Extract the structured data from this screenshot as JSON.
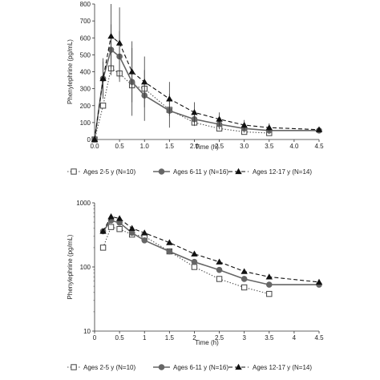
{
  "chart_data": [
    {
      "type": "line",
      "xlabel": "Time (h)",
      "ylabel": "Phenylephrine (pg/mL)",
      "xlim": [
        0,
        4.5
      ],
      "ylim": [
        0,
        800
      ],
      "yscale": "linear",
      "x_ticks": [
        "0.0",
        "0.5",
        "1.0",
        "1.5",
        "2.0",
        "2.5",
        "3.0",
        "3.5",
        "4.0",
        "4.5"
      ],
      "y_ticks": [
        "0",
        "100",
        "200",
        "300",
        "400",
        "500",
        "600",
        "700",
        "800"
      ],
      "grid": false,
      "legend_position": "bottom",
      "series": [
        {
          "name": "Ages 2-5 y",
          "n_label": "(N=10)",
          "marker": "open-square",
          "line_style": "dotted",
          "color": "#555555",
          "x": [
            0,
            0.17,
            0.33,
            0.5,
            0.75,
            1.0,
            1.5,
            2.0,
            2.5,
            3.0,
            3.5
          ],
          "y": [
            0,
            200,
            420,
            390,
            320,
            300,
            175,
            100,
            65,
            45,
            38
          ]
        },
        {
          "name": "Ages 6-11 y",
          "n_label": "(N=16)",
          "marker": "filled-circle",
          "line_style": "solid",
          "color": "#666666",
          "x": [
            0,
            0.17,
            0.33,
            0.5,
            0.75,
            1.0,
            1.5,
            2.0,
            2.5,
            3.0,
            3.5,
            4.5
          ],
          "y": [
            0,
            360,
            530,
            490,
            340,
            260,
            170,
            120,
            90,
            65,
            53,
            53
          ],
          "error": [
            0,
            100,
            150,
            150,
            200,
            150,
            100,
            40,
            30,
            25,
            20,
            10
          ]
        },
        {
          "name": "Ages 12-17 y",
          "n_label": "(N=14)",
          "marker": "filled-triangle",
          "line_style": "dashed",
          "color": "#111111",
          "x": [
            0,
            0.17,
            0.33,
            0.5,
            0.75,
            1.0,
            1.5,
            2.0,
            2.5,
            3.0,
            3.5,
            4.5
          ],
          "y": [
            0,
            360,
            610,
            570,
            400,
            340,
            240,
            160,
            120,
            85,
            70,
            58
          ],
          "error": [
            0,
            120,
            190,
            210,
            180,
            150,
            100,
            60,
            40,
            30,
            25,
            15
          ]
        }
      ]
    },
    {
      "type": "line",
      "xlabel": "Time (h)",
      "ylabel": "Phenylephrine (pg/mL)",
      "xlim": [
        0,
        4.5
      ],
      "ylim": [
        10,
        1000
      ],
      "yscale": "log",
      "x_ticks": [
        "0",
        "0.5",
        "1",
        "1.5",
        "2",
        "2.5",
        "3",
        "3.5",
        "4",
        "4.5"
      ],
      "y_ticks": [
        "10",
        "100",
        "1000"
      ],
      "grid": false,
      "legend_position": "bottom",
      "series": [
        {
          "name": "Ages 2-5 y",
          "n_label": "(N=10)",
          "marker": "open-square",
          "line_style": "dotted",
          "color": "#555555",
          "x": [
            0.17,
            0.33,
            0.5,
            0.75,
            1.0,
            1.5,
            2.0,
            2.5,
            3.0,
            3.5
          ],
          "y": [
            200,
            420,
            390,
            320,
            300,
            175,
            100,
            65,
            48,
            38
          ]
        },
        {
          "name": "Ages 6-11 y",
          "n_label": "(N=16)",
          "marker": "filled-circle",
          "line_style": "solid",
          "color": "#666666",
          "x": [
            0.17,
            0.33,
            0.5,
            0.75,
            1.0,
            1.5,
            2.0,
            2.5,
            3.0,
            3.5,
            4.5
          ],
          "y": [
            360,
            530,
            490,
            340,
            260,
            175,
            120,
            90,
            65,
            53,
            53
          ]
        },
        {
          "name": "Ages 12-17 y",
          "n_label": "(N=14)",
          "marker": "filled-triangle",
          "line_style": "dashed",
          "color": "#111111",
          "x": [
            0.17,
            0.33,
            0.5,
            0.75,
            1.0,
            1.5,
            2.0,
            2.5,
            3.0,
            3.5,
            4.5
          ],
          "y": [
            360,
            610,
            570,
            400,
            340,
            240,
            160,
            120,
            85,
            70,
            58
          ]
        }
      ]
    }
  ]
}
